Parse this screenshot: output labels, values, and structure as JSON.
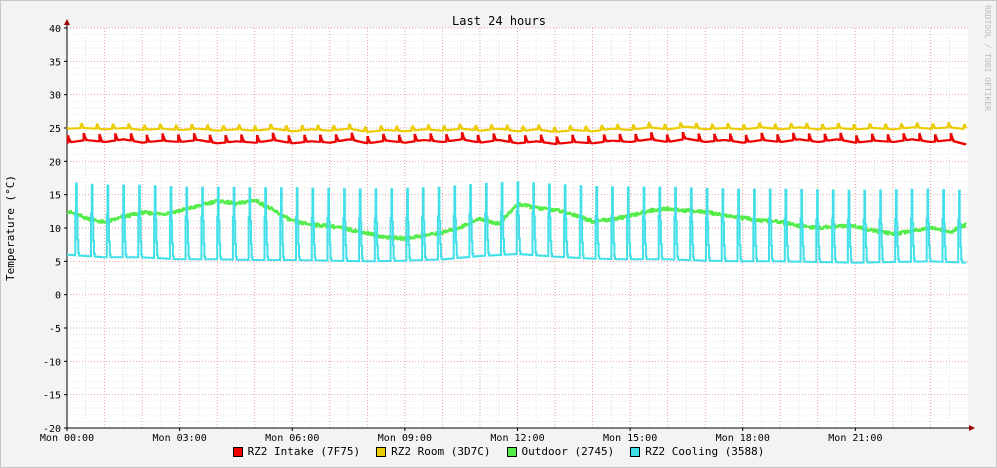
{
  "chart_data": {
    "type": "line",
    "title": "Last 24 hours",
    "ylabel": "Temperature (°C)",
    "xlabel": "",
    "ylim": [
      -20,
      40
    ],
    "yticks": [
      40,
      35,
      30,
      25,
      20,
      15,
      10,
      5,
      0,
      -5,
      -10,
      -15,
      -20
    ],
    "xlim": [
      0,
      24
    ],
    "xticks": [
      {
        "hour": 0,
        "label": "Mon 00:00"
      },
      {
        "hour": 3,
        "label": "Mon 03:00"
      },
      {
        "hour": 6,
        "label": "Mon 06:00"
      },
      {
        "hour": 9,
        "label": "Mon 09:00"
      },
      {
        "hour": 12,
        "label": "Mon 12:00"
      },
      {
        "hour": 15,
        "label": "Mon 15:00"
      },
      {
        "hour": 18,
        "label": "Mon 18:00"
      },
      {
        "hour": 21,
        "label": "Mon 21:00"
      }
    ],
    "grid": true,
    "legend_position": "bottom",
    "watermark": "RRDTOOL / TOBI OETIKER",
    "series": [
      {
        "name": "RZ2 Intake (7F75)",
        "color": "#ee0000",
        "x": [
          0,
          0.5,
          1,
          1.5,
          2,
          2.5,
          3,
          3.5,
          4,
          4.5,
          5,
          5.5,
          6,
          6.5,
          7,
          7.5,
          8,
          8.5,
          9,
          9.5,
          10,
          10.5,
          11,
          11.5,
          12,
          12.5,
          13,
          13.5,
          14,
          14.5,
          15,
          15.5,
          16,
          16.5,
          17,
          17.5,
          18,
          18.5,
          19,
          19.5,
          20,
          20.5,
          21,
          21.5,
          22,
          22.5,
          23,
          23.5,
          23.95
        ],
        "y": [
          22.8,
          23.2,
          22.9,
          23.3,
          22.8,
          23.1,
          22.9,
          23.2,
          22.7,
          23.0,
          22.8,
          23.2,
          22.7,
          23.0,
          22.8,
          23.3,
          22.7,
          23.1,
          22.8,
          23.2,
          22.9,
          23.3,
          22.8,
          23.2,
          22.7,
          23.0,
          22.6,
          22.9,
          22.7,
          23.1,
          22.9,
          23.3,
          22.9,
          23.4,
          22.9,
          23.2,
          22.8,
          23.2,
          22.9,
          23.3,
          22.9,
          23.3,
          22.8,
          23.1,
          22.9,
          23.3,
          22.9,
          23.2,
          22.5
        ],
        "spike_every_h": 0.42,
        "spike_height": 1.0
      },
      {
        "name": "RZ2 Room (3D7C)",
        "color": "#eacc00",
        "x": [
          0,
          0.5,
          1,
          1.5,
          2,
          2.5,
          3,
          3.5,
          4,
          4.5,
          5,
          5.5,
          6,
          6.5,
          7,
          7.5,
          8,
          8.5,
          9,
          9.5,
          10,
          10.5,
          11,
          11.5,
          12,
          12.5,
          13,
          13.5,
          14,
          14.5,
          15,
          15.5,
          16,
          16.5,
          17,
          17.5,
          18,
          18.5,
          19,
          19.5,
          20,
          20.5,
          21,
          21.5,
          22,
          22.5,
          23,
          23.5,
          23.95
        ],
        "y": [
          24.9,
          25.0,
          24.8,
          25.0,
          24.7,
          24.9,
          24.7,
          24.9,
          24.6,
          24.8,
          24.6,
          24.9,
          24.5,
          24.8,
          24.6,
          24.9,
          24.4,
          24.7,
          24.5,
          24.8,
          24.6,
          24.9,
          24.6,
          24.9,
          24.5,
          24.8,
          24.4,
          24.7,
          24.5,
          24.9,
          24.7,
          25.1,
          24.8,
          25.2,
          24.8,
          25.0,
          24.8,
          25.1,
          24.8,
          25.1,
          24.8,
          25.0,
          24.8,
          25.0,
          24.8,
          25.1,
          24.9,
          25.1,
          24.8
        ],
        "spike_every_h": 0.42,
        "spike_height": 0.8
      },
      {
        "name": "Outdoor (2745)",
        "color": "#54ec48",
        "x": [
          0,
          0.5,
          1,
          1.5,
          2,
          2.5,
          3,
          3.5,
          4,
          4.5,
          5,
          5.5,
          6,
          6.5,
          7,
          7.5,
          8,
          8.5,
          9,
          9.5,
          10,
          10.5,
          11,
          11.5,
          12,
          12.5,
          13,
          13.5,
          14,
          14.5,
          15,
          15.5,
          16,
          16.5,
          17,
          17.5,
          18,
          18.5,
          19,
          19.5,
          20,
          20.5,
          21,
          21.5,
          22,
          22.5,
          23,
          23.5,
          23.95
        ],
        "y": [
          12.5,
          11.5,
          10.8,
          11.7,
          12.3,
          12.1,
          12.6,
          13.3,
          14.1,
          13.6,
          14.2,
          12.6,
          11.0,
          10.5,
          10.3,
          9.8,
          9.2,
          8.6,
          8.4,
          8.9,
          9.3,
          10.2,
          11.4,
          10.6,
          13.6,
          13.0,
          12.7,
          12.0,
          11.0,
          11.3,
          11.8,
          12.6,
          12.9,
          12.6,
          12.4,
          11.9,
          11.5,
          11.1,
          10.9,
          10.3,
          10.0,
          10.3,
          10.2,
          9.6,
          9.1,
          9.6,
          10.1,
          9.4,
          10.5
        ],
        "spike_every_h": 0,
        "spike_height": 0
      },
      {
        "name": "RZ2 Cooling (3588)",
        "color": "#42dfe9",
        "x": [
          0,
          1,
          2,
          3,
          4,
          5,
          6,
          7,
          8,
          9,
          10,
          11,
          12,
          13,
          14,
          15,
          16,
          17,
          18,
          19,
          20,
          21,
          22,
          23,
          23.95
        ],
        "y": [
          6.0,
          5.6,
          5.6,
          5.3,
          5.3,
          5.2,
          5.2,
          5.1,
          5.0,
          5.1,
          5.3,
          5.8,
          6.1,
          5.7,
          5.4,
          5.3,
          5.3,
          5.1,
          5.0,
          5.0,
          4.9,
          4.8,
          4.9,
          5.0,
          4.8
        ],
        "spike_every_h": 0.42,
        "spike_height": 13.5
      }
    ]
  }
}
